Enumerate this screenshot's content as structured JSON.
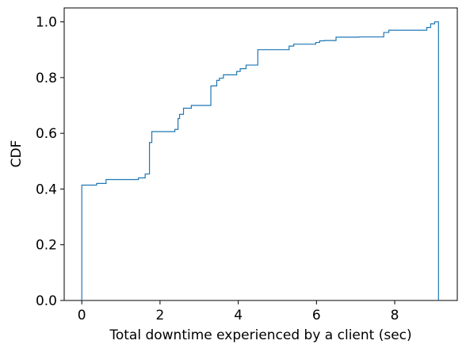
{
  "chart_data": {
    "type": "line",
    "subtype": "step-cdf",
    "title": "",
    "xlabel": "Total downtime experienced by a client (sec)",
    "ylabel": "CDF",
    "xlim": [
      -0.45,
      9.6
    ],
    "ylim": [
      0.0,
      1.05
    ],
    "xticks": [
      0,
      2,
      4,
      6,
      8
    ],
    "yticks": [
      0.0,
      0.2,
      0.4,
      0.6,
      0.8,
      1.0
    ],
    "xtick_labels": [
      "0",
      "2",
      "4",
      "6",
      "8"
    ],
    "ytick_labels": [
      "0.0",
      "0.2",
      "0.4",
      "0.6",
      "0.8",
      "1.0"
    ],
    "grid": false,
    "line_color": "#1f77b4",
    "series": [
      {
        "x": [
          0.0,
          0.0,
          0.38,
          0.38,
          0.62,
          0.62,
          1.45,
          1.45,
          1.62,
          1.62,
          1.73,
          1.73,
          1.79,
          1.79,
          2.38,
          2.38,
          2.46,
          2.46,
          2.5,
          2.5,
          2.6,
          2.6,
          2.8,
          2.8,
          3.3,
          3.3,
          3.45,
          3.45,
          3.52,
          3.52,
          3.62,
          3.62,
          3.96,
          3.96,
          4.05,
          4.05,
          4.2,
          4.2,
          4.5,
          4.5,
          5.3,
          5.3,
          5.42,
          5.42,
          5.98,
          5.98,
          6.08,
          6.08,
          6.2,
          6.2,
          6.5,
          6.5,
          7.08,
          7.08,
          7.72,
          7.72,
          7.85,
          7.85,
          8.82,
          8.82,
          8.92,
          8.92,
          9.02,
          9.02,
          9.12,
          9.12
        ],
        "y": [
          0.0,
          0.414,
          0.414,
          0.42,
          0.42,
          0.434,
          0.434,
          0.44,
          0.44,
          0.454,
          0.454,
          0.567,
          0.567,
          0.606,
          0.606,
          0.614,
          0.614,
          0.653,
          0.653,
          0.668,
          0.668,
          0.69,
          0.69,
          0.7,
          0.7,
          0.77,
          0.77,
          0.79,
          0.79,
          0.798,
          0.798,
          0.81,
          0.81,
          0.822,
          0.822,
          0.832,
          0.832,
          0.845,
          0.845,
          0.9,
          0.9,
          0.913,
          0.913,
          0.92,
          0.92,
          0.926,
          0.926,
          0.932,
          0.932,
          0.933,
          0.933,
          0.945,
          0.945,
          0.946,
          0.946,
          0.962,
          0.962,
          0.97,
          0.97,
          0.98,
          0.98,
          0.993,
          0.993,
          1.0,
          1.0,
          0.0
        ]
      }
    ]
  }
}
